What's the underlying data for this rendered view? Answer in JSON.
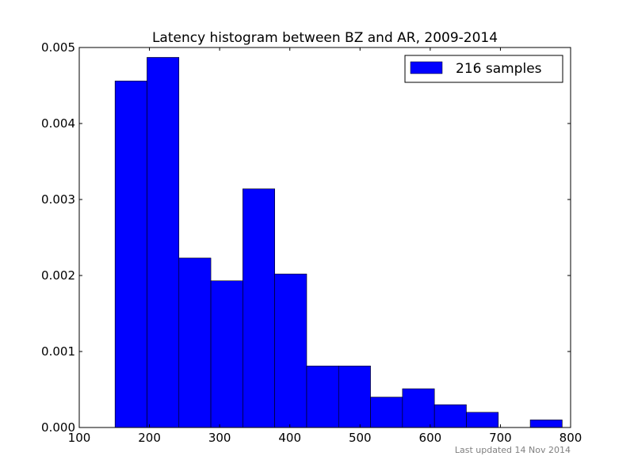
{
  "chart_data": {
    "type": "bar",
    "title": "Latency histogram between BZ and AR, 2009-2014",
    "xlabel": "",
    "ylabel": "",
    "xlim": [
      100,
      800
    ],
    "ylim": [
      0,
      0.005
    ],
    "xticks": [
      100,
      200,
      300,
      400,
      500,
      600,
      700,
      800
    ],
    "xtick_labels": [
      "100",
      "200",
      "300",
      "400",
      "500",
      "600",
      "700",
      "800"
    ],
    "yticks": [
      0,
      0.001,
      0.002,
      0.003,
      0.004,
      0.005
    ],
    "ytick_labels": [
      "0.000",
      "0.001",
      "0.002",
      "0.003",
      "0.004",
      "0.005"
    ],
    "bin_edges": [
      151,
      196.5,
      242,
      287.5,
      333,
      378.5,
      424,
      469.5,
      515,
      560.5,
      606,
      651.5,
      697,
      742.5,
      788
    ],
    "series": [
      {
        "name": "216 samples",
        "color": "#0000ff",
        "values": [
          0.00456,
          0.00487,
          0.00223,
          0.00193,
          0.00314,
          0.00202,
          0.00081,
          0.00081,
          0.0004,
          0.00051,
          0.0003,
          0.0002,
          0,
          0.0001
        ]
      }
    ],
    "legend": {
      "position": "top-right",
      "label": "216 samples"
    },
    "grid": false
  },
  "footnote": "Last updated 14 Nov 2014"
}
